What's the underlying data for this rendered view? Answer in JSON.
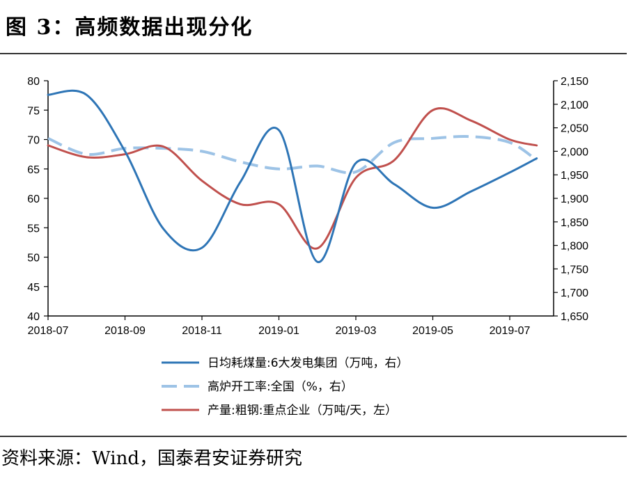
{
  "figure": {
    "title": "图 3：高频数据出现分化",
    "source": "资料来源：Wind，国泰君安证券研究"
  },
  "chart_data": {
    "type": "line",
    "title": "",
    "xlabel": "",
    "x_ticks": [
      "2018-07",
      "2018-09",
      "2018-11",
      "2019-01",
      "2019-03",
      "2019-05",
      "2019-07"
    ],
    "left_axis": {
      "ylim": [
        40,
        80
      ],
      "ticks": [
        "40",
        "45",
        "50",
        "55",
        "60",
        "65",
        "70",
        "75",
        "80"
      ]
    },
    "right_axis": {
      "ylim": [
        1650,
        2150
      ],
      "ticks": [
        "1,650",
        "1,700",
        "1,750",
        "1,800",
        "1,850",
        "1,900",
        "1,950",
        "2,000",
        "2,050",
        "2,100",
        "2,150"
      ]
    },
    "grid": false,
    "legend_position": "bottom",
    "series": [
      {
        "name": "日均耗煤量:6大发电集团（万吨，右）",
        "axis": "right",
        "color": "#2E75B6",
        "dash": "solid",
        "x": [
          0,
          0.5,
          1,
          1.5,
          2,
          2.5,
          3,
          3.5,
          4,
          4.5,
          5,
          5.5,
          6,
          6.35
        ],
        "values": [
          2120,
          2120,
          2000,
          1835,
          1795,
          1935,
          2045,
          1765,
          1975,
          1930,
          1880,
          1915,
          1955,
          1985
        ]
      },
      {
        "name": "高炉开工率:全国（%，右）",
        "axis": "right",
        "color": "#9DC3E6",
        "dash": "dashed",
        "x": [
          0,
          0.5,
          1,
          1.5,
          2,
          2.5,
          3,
          3.5,
          4,
          4.5,
          5,
          5.5,
          6,
          6.35
        ],
        "values": [
          70.2,
          67.5,
          68.5,
          68.5,
          68,
          66.2,
          65,
          65.5,
          64.5,
          69.5,
          70.2,
          70.5,
          69.5,
          66.5
        ]
      },
      {
        "name": "产量:粗钢:重点企业（万吨/天，左）",
        "axis": "left",
        "color": "#C0504D",
        "dash": "solid",
        "x": [
          0,
          0.5,
          1,
          1.5,
          2,
          2.5,
          3,
          3.5,
          4,
          4.5,
          5,
          5.5,
          6,
          6.35
        ],
        "values": [
          69,
          67,
          67.5,
          68.8,
          63,
          59,
          59,
          51.5,
          63.5,
          66.5,
          75,
          73.2,
          70,
          69
        ]
      }
    ]
  }
}
